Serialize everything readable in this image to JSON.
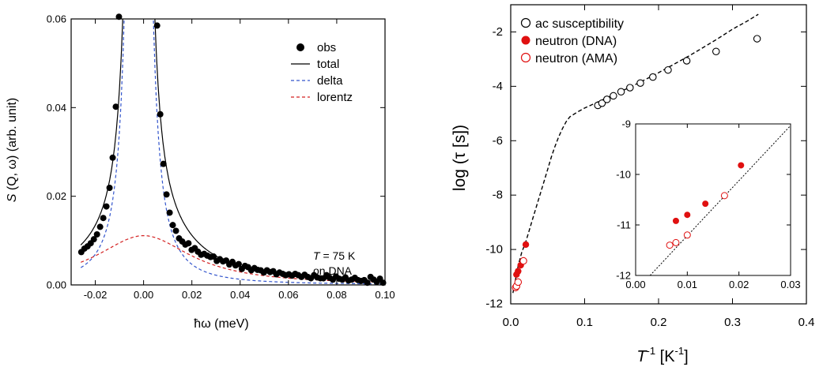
{
  "chart_data": [
    {
      "type": "scatter",
      "xlabel": "ħω (meV)",
      "ylabel": "S (Q, ω) (arb. unit)",
      "xlim": [
        -0.03,
        0.1
      ],
      "ylim": [
        0,
        0.06
      ],
      "xticks": [
        -0.02,
        0.0,
        0.02,
        0.04,
        0.06,
        0.08,
        0.1
      ],
      "xticklabels": [
        "-0.02",
        "0.00",
        "0.02",
        "0.04",
        "0.06",
        "0.08",
        "0.10"
      ],
      "yticks": [
        0.0,
        0.02,
        0.04,
        0.06
      ],
      "yticklabels": [
        "0.00",
        "0.02",
        "0.04",
        "0.06"
      ],
      "legend": {
        "position": "top-right",
        "entries": [
          "obs",
          "total",
          "delta",
          "lorentz"
        ]
      },
      "annotations": [
        "T = 75 K",
        "on DNA"
      ],
      "series": [
        {
          "name": "obs",
          "style": "filled-circle",
          "color": "#000000",
          "x": [
            -0.0258,
            -0.0245,
            -0.0232,
            -0.0219,
            -0.0206,
            -0.0193,
            -0.018,
            -0.0167,
            -0.0154,
            -0.0141,
            -0.0128,
            -0.0115,
            -0.0102,
            0.0056,
            0.0069,
            0.0082,
            0.0095,
            0.0108,
            0.0121,
            0.0134,
            0.0147,
            0.016,
            0.0173,
            0.0186,
            0.0199,
            0.0212,
            0.0225,
            0.0238,
            0.0251,
            0.0264,
            0.0277,
            0.029,
            0.0303,
            0.0316,
            0.0329,
            0.0342,
            0.0355,
            0.0368,
            0.0381,
            0.0394,
            0.0407,
            0.042,
            0.0433,
            0.0446,
            0.0459,
            0.0472,
            0.0485,
            0.0498,
            0.0511,
            0.0524,
            0.0537,
            0.055,
            0.0563,
            0.0576,
            0.0589,
            0.0602,
            0.0615,
            0.0628,
            0.0641,
            0.0654,
            0.0667,
            0.068,
            0.0693,
            0.0706,
            0.0719,
            0.0732,
            0.0745,
            0.0758,
            0.0771,
            0.0784,
            0.0797,
            0.081,
            0.0823,
            0.0836,
            0.0849,
            0.0862,
            0.0875,
            0.0888,
            0.0901,
            0.0914,
            0.0927,
            0.094,
            0.0953,
            0.0966,
            0.0979,
            0.0992
          ],
          "y": [
            0.0074,
            0.0082,
            0.0087,
            0.0094,
            0.0103,
            0.0114,
            0.0131,
            0.0151,
            0.0177,
            0.0219,
            0.0287,
            0.0402,
            0.0605,
            0.0585,
            0.0385,
            0.0273,
            0.0204,
            0.0163,
            0.0135,
            0.0122,
            0.0105,
            0.0098,
            0.0091,
            0.0094,
            0.0079,
            0.0083,
            0.0075,
            0.0068,
            0.007,
            0.0066,
            0.0063,
            0.0064,
            0.0054,
            0.0058,
            0.0053,
            0.0055,
            0.0046,
            0.0052,
            0.0044,
            0.0047,
            0.0036,
            0.0043,
            0.004,
            0.0033,
            0.0038,
            0.0034,
            0.0033,
            0.0028,
            0.0033,
            0.0029,
            0.0031,
            0.0024,
            0.0028,
            0.0025,
            0.0022,
            0.0024,
            0.0021,
            0.0025,
            0.0022,
            0.0018,
            0.0023,
            0.0018,
            0.0015,
            0.0022,
            0.0017,
            0.0015,
            0.0015,
            0.0022,
            0.0016,
            0.0012,
            0.0019,
            0.0014,
            0.0012,
            0.0017,
            0.001,
            0.0012,
            0.0016,
            0.0011,
            0.0009,
            0.0011,
            0.0005,
            0.0018,
            0.0012,
            0.0007,
            0.0014,
            0.0005
          ]
        },
        {
          "name": "total",
          "style": "solid-line",
          "color": "#000000",
          "model": {
            "delta_amp": 3e-05,
            "delta_width": 0.0011,
            "delta_center": -0.002,
            "lorentz_amp": 6.4e-06,
            "lorentz_width": 0.024,
            "lorentz_center": 0.0
          }
        },
        {
          "name": "delta",
          "style": "dashed-line",
          "color": "#3355cc"
        },
        {
          "name": "lorentz",
          "style": "dashed-line",
          "color": "#d32020"
        }
      ]
    },
    {
      "type": "scatter",
      "xlabel": "T-1 [K-1]",
      "ylabel": "log (τ [s])",
      "xlim": [
        0,
        0.4
      ],
      "ylim": [
        -12,
        -1
      ],
      "xticks": [
        0.0,
        0.1,
        0.2,
        0.3,
        0.4
      ],
      "xticklabels": [
        "0.0",
        "0.1",
        "0.2",
        "0.3",
        "0.4"
      ],
      "yticks": [
        -12,
        -10,
        -8,
        -6,
        -4,
        -2
      ],
      "yticklabels": [
        "-12",
        "-10",
        "-8",
        "-6",
        "-4",
        "-2"
      ],
      "legend": {
        "position": "top-left",
        "entries": [
          "ac susceptibility",
          "neutron (DNA)",
          "neutron (AMA)"
        ]
      },
      "series": [
        {
          "name": "ac susceptibility",
          "style": "open-circle",
          "color": "#000000",
          "x": [
            0.1179,
            0.1235,
            0.1302,
            0.1389,
            0.1493,
            0.1613,
            0.1754,
            0.1923,
            0.2128,
            0.2381,
            0.2778,
            0.3333
          ],
          "y": [
            -4.7,
            -4.62,
            -4.48,
            -4.35,
            -4.2,
            -4.05,
            -3.88,
            -3.66,
            -3.4,
            -3.06,
            -2.72,
            -2.25
          ]
        },
        {
          "name": "neutron (DNA)",
          "style": "filled-circle",
          "color": "#e01010",
          "x": [
            0.0078,
            0.01,
            0.0135,
            0.0204
          ],
          "y": [
            -10.92,
            -10.8,
            -10.58,
            -9.82
          ]
        },
        {
          "name": "neutron (AMA)",
          "style": "open-circle",
          "color": "#e01010",
          "x": [
            0.0066,
            0.0078,
            0.01,
            0.0172
          ],
          "y": [
            -11.4,
            -11.35,
            -11.2,
            -10.42
          ]
        },
        {
          "name": "fit",
          "style": "dashed-line",
          "color": "#000000",
          "x": [
            0.003,
            0.01,
            0.015,
            0.02,
            0.025,
            0.03,
            0.035,
            0.04,
            0.045,
            0.05,
            0.055,
            0.06,
            0.065,
            0.07,
            0.075,
            0.08,
            0.09,
            0.1,
            0.12,
            0.14,
            0.16,
            0.18,
            0.2,
            0.22,
            0.24,
            0.26,
            0.28,
            0.3,
            0.32,
            0.335
          ],
          "y": [
            -11.6,
            -10.6,
            -10.1,
            -9.75,
            -9.3,
            -8.85,
            -8.4,
            -7.95,
            -7.5,
            -7.05,
            -6.6,
            -6.2,
            -5.85,
            -5.55,
            -5.3,
            -5.12,
            -4.95,
            -4.8,
            -4.55,
            -4.3,
            -4.05,
            -3.78,
            -3.5,
            -3.2,
            -2.9,
            -2.58,
            -2.25,
            -1.9,
            -1.6,
            -1.35
          ]
        }
      ]
    },
    {
      "type": "scatter",
      "inset": true,
      "xlim": [
        0,
        0.03
      ],
      "ylim": [
        -12,
        -9
      ],
      "xticks": [
        0.0,
        0.01,
        0.02,
        0.03
      ],
      "xticklabels": [
        "0.00",
        "0.01",
        "0.02",
        "0.03"
      ],
      "yticks": [
        -12,
        -11,
        -10,
        -9
      ],
      "yticklabels": [
        "-12",
        "-11",
        "-10",
        "-9"
      ],
      "series": [
        {
          "name": "neutron (DNA)",
          "style": "filled-circle",
          "color": "#e01010",
          "x": [
            0.0078,
            0.01,
            0.0135,
            0.0204
          ],
          "y": [
            -10.92,
            -10.8,
            -10.58,
            -9.82
          ]
        },
        {
          "name": "neutron (AMA)",
          "style": "open-circle",
          "color": "#e01010",
          "x": [
            0.0066,
            0.0078,
            0.01,
            0.0172
          ],
          "y": [
            -11.4,
            -11.35,
            -11.2,
            -10.42
          ]
        },
        {
          "name": "fit",
          "style": "dotted-line",
          "color": "#000000",
          "x": [
            0.0028,
            0.0303
          ],
          "y": [
            -12.0,
            -9.0
          ]
        }
      ]
    }
  ],
  "labels": {
    "left_ylabel_italic": "S",
    "left_ylabel_rest": " (Q, ω) (arb. unit)",
    "left_xlabel": "ħω (meV)",
    "left_annot_T": "T",
    "left_annot_rest": " = 75 K",
    "left_annot_line2": "on DNA",
    "right_ylabel": "log (τ [s])",
    "right_xlabel_T": "T",
    "right_xlabel_sup": "-1",
    "right_xlabel_mid": " [K",
    "right_xlabel_sup2": "-1",
    "right_xlabel_end": "]"
  }
}
